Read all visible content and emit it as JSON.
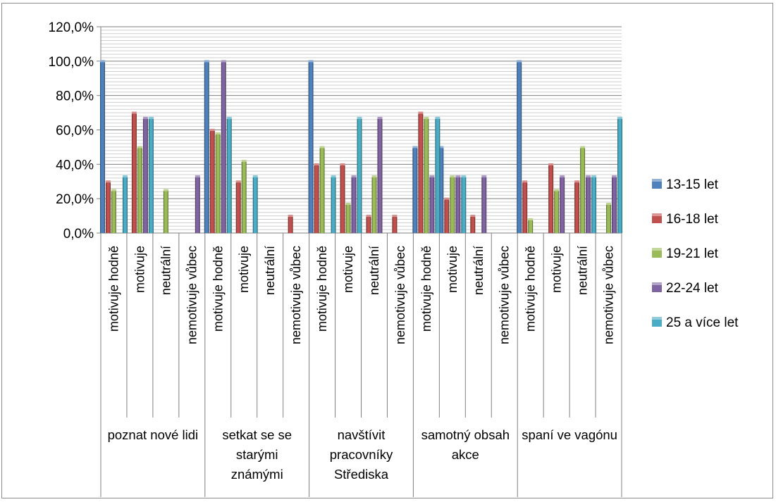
{
  "chart_data": {
    "type": "bar",
    "title": "",
    "xlabel": "",
    "ylabel": "",
    "ylim": [
      0,
      120
    ],
    "y_ticks": [
      "0,0%",
      "20,0%",
      "40,0%",
      "60,0%",
      "80,0%",
      "100,0%",
      "120,0%"
    ],
    "grid": true,
    "legend_position": "right",
    "groups": [
      "poznat nové lidi",
      "setkat se se starými známými",
      "navštívit pracovníky Střediska",
      "samotný obsah akce",
      "spaní ve vagónu"
    ],
    "subcategories": [
      "motivuje hodně",
      "motivuje",
      "neutrální",
      "nemotivuje vůbec"
    ],
    "categories": [
      "motivuje hodně",
      "motivuje",
      "neutrální",
      "nemotivuje vůbec",
      "motivuje hodně",
      "motivuje",
      "neutrální",
      "nemotivuje vůbec",
      "motivuje hodně",
      "motivuje",
      "neutrální",
      "nemotivuje vůbec",
      "motivuje hodně",
      "motivuje",
      "neutrální",
      "nemotivuje vůbec",
      "motivuje hodně",
      "motivuje",
      "neutrální",
      "nemotivuje vůbec"
    ],
    "series": [
      {
        "name": "13-15 let",
        "color": "#4F81BD",
        "values": [
          100,
          0,
          0,
          0,
          100,
          0,
          0,
          0,
          100,
          0,
          0,
          0,
          50,
          50,
          0,
          0,
          100,
          0,
          0,
          0
        ]
      },
      {
        "name": "16-18 let",
        "color": "#C0504D",
        "values": [
          30,
          70,
          0,
          0,
          60,
          30,
          0,
          10,
          40,
          40,
          10,
          10,
          70,
          20,
          10,
          0,
          30,
          40,
          30,
          0
        ]
      },
      {
        "name": "19-21 let",
        "color": "#9BBB59",
        "values": [
          25,
          50,
          25,
          0,
          58,
          42,
          0,
          0,
          50,
          17,
          33,
          0,
          67,
          33,
          0,
          0,
          8,
          25,
          50,
          17
        ]
      },
      {
        "name": "22-24 let",
        "color": "#8064A2",
        "values": [
          0,
          67,
          0,
          33,
          100,
          0,
          0,
          0,
          0,
          33,
          67,
          0,
          33,
          33,
          33,
          0,
          0,
          33,
          33,
          33
        ]
      },
      {
        "name": "25 a více let",
        "color": "#4BACC6",
        "values": [
          33,
          67,
          0,
          0,
          67,
          33,
          0,
          0,
          33,
          67,
          0,
          0,
          67,
          33,
          0,
          0,
          0,
          0,
          33,
          67
        ]
      }
    ]
  }
}
